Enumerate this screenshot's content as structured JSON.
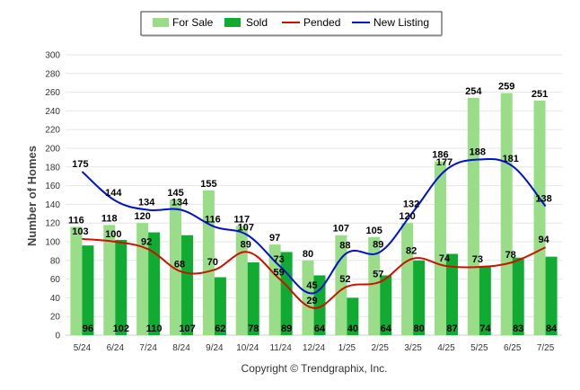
{
  "chart_data": {
    "type": "bar",
    "ylabel": "Number of Homes",
    "ylim": [
      0,
      300
    ],
    "yticks": [
      0,
      20,
      40,
      60,
      80,
      100,
      120,
      140,
      160,
      180,
      200,
      220,
      240,
      260,
      280,
      300
    ],
    "grid": true,
    "legend_position": "top-center",
    "categories": [
      "5/24",
      "6/24",
      "7/24",
      "8/24",
      "9/24",
      "10/24",
      "11/24",
      "12/24",
      "1/25",
      "2/25",
      "3/25",
      "4/25",
      "5/25",
      "6/25",
      "7/25"
    ],
    "series": [
      {
        "name": "For Sale",
        "kind": "bar",
        "color": "#99dd88",
        "values": [
          116,
          118,
          120,
          145,
          155,
          117,
          97,
          80,
          107,
          105,
          120,
          186,
          254,
          259,
          251
        ]
      },
      {
        "name": "Sold",
        "kind": "bar",
        "color": "#11aa33",
        "values": [
          96,
          102,
          110,
          107,
          62,
          78,
          89,
          64,
          40,
          64,
          80,
          87,
          74,
          83,
          84
        ]
      },
      {
        "name": "Pended",
        "kind": "line",
        "color": "#cc1100",
        "values": [
          103,
          100,
          92,
          68,
          70,
          89,
          59,
          29,
          52,
          57,
          82,
          74,
          73,
          78,
          94
        ]
      },
      {
        "name": "New Listing",
        "kind": "line",
        "color": "#0011cc",
        "values": [
          175,
          144,
          134,
          134,
          116,
          107,
          73,
          45,
          88,
          89,
          132,
          177,
          188,
          181,
          138
        ]
      }
    ]
  },
  "copyright": "Copyright © Trendgraphix, Inc."
}
